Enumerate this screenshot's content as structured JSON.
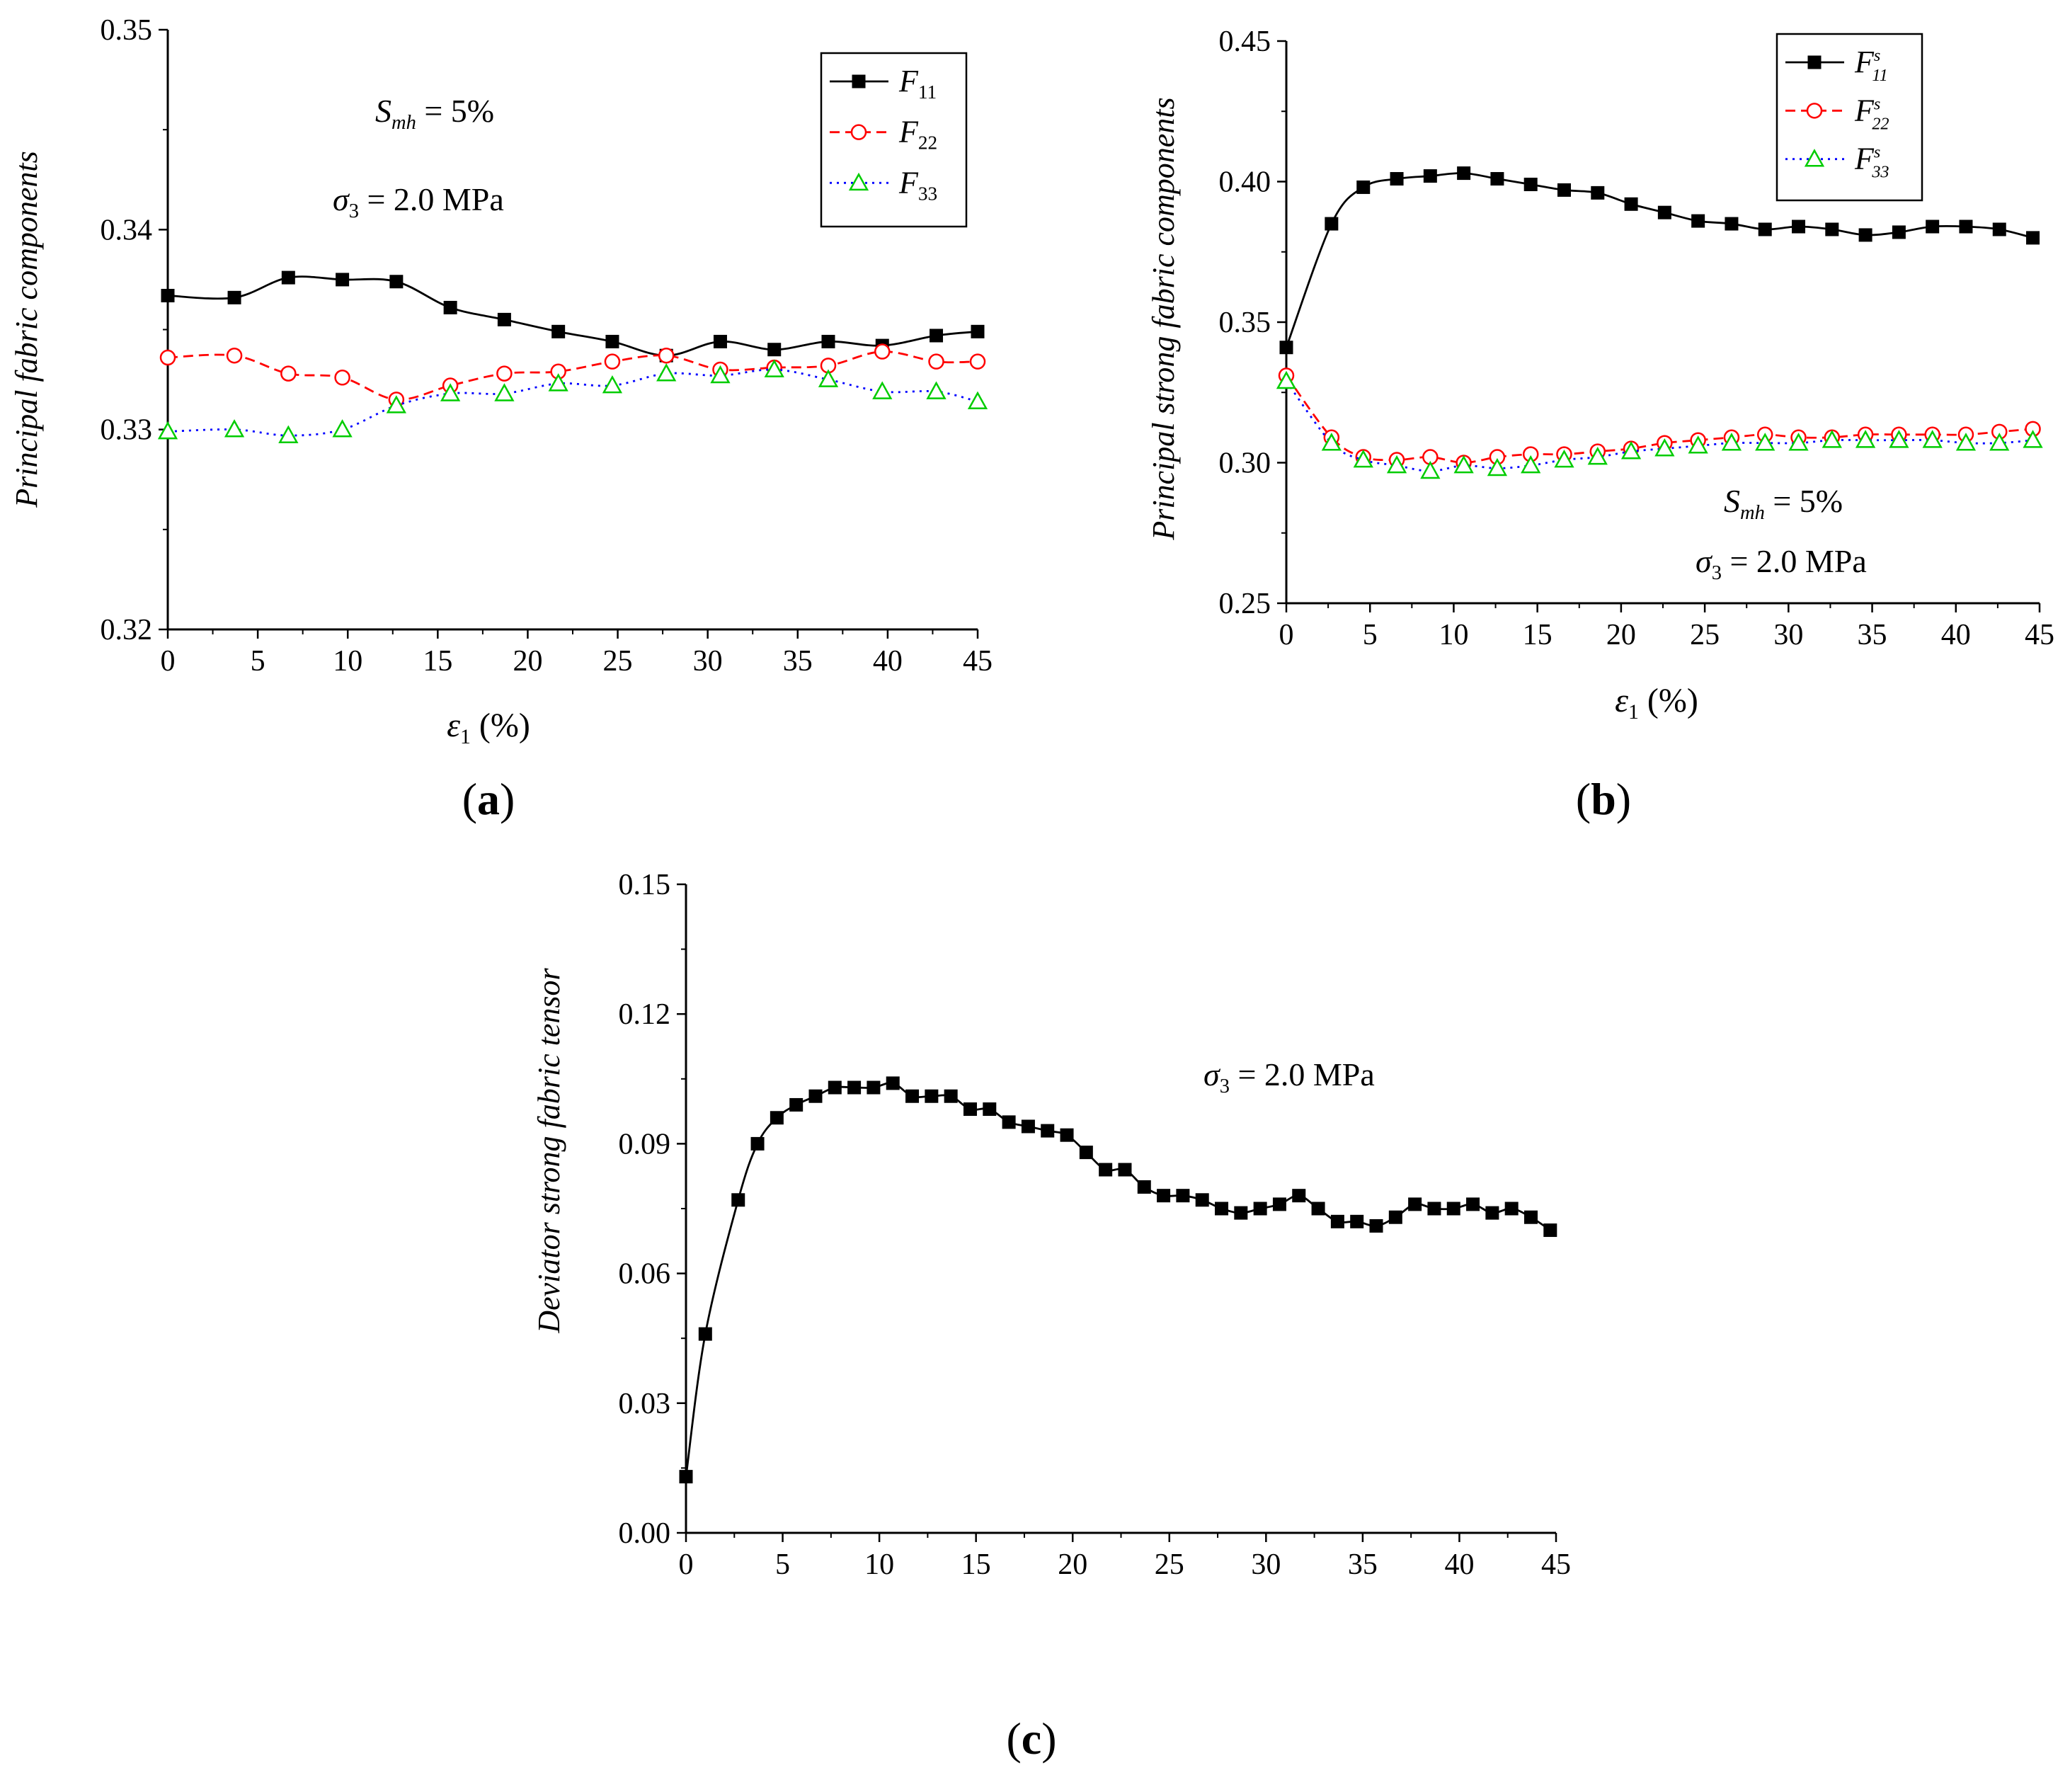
{
  "chart_data": [
    {
      "panel": "(a)",
      "type": "line",
      "x": [
        0,
        3.7,
        6.7,
        9.7,
        12.7,
        15.7,
        18.7,
        21.7,
        24.7,
        27.7,
        30.7,
        33.7,
        36.7,
        39.7,
        42.7,
        45
      ],
      "series": [
        {
          "name": "F11",
          "color": "#000000",
          "dash": "",
          "marker": "square-filled",
          "values": [
            0.3367,
            0.3366,
            0.3376,
            0.3375,
            0.3374,
            0.3361,
            0.3355,
            0.3349,
            0.3344,
            0.3337,
            0.3344,
            0.334,
            0.3344,
            0.3342,
            0.3347,
            0.3349
          ]
        },
        {
          "name": "F22",
          "color": "#ff0000",
          "dash": "14,8",
          "marker": "circle-open",
          "values": [
            0.3336,
            0.3337,
            0.3328,
            0.3326,
            0.3315,
            0.3322,
            0.3328,
            0.3329,
            0.3334,
            0.3337,
            0.333,
            0.3331,
            0.3332,
            0.3339,
            0.3334,
            0.3334
          ]
        },
        {
          "name": "F33",
          "color": "#0000ff",
          "dash": "3,7",
          "marker": "triangle-open-green",
          "values": [
            0.3299,
            0.33,
            0.3297,
            0.33,
            0.3312,
            0.3318,
            0.3318,
            0.3323,
            0.3322,
            0.3328,
            0.3327,
            0.333,
            0.3325,
            0.3319,
            0.3319,
            0.3314
          ]
        }
      ],
      "xlim": [
        0,
        45
      ],
      "ylim": [
        0.32,
        0.35
      ],
      "xticks": [
        "0",
        "5",
        "10",
        "15",
        "20",
        "25",
        "30",
        "35",
        "40",
        "45"
      ],
      "yticks": [
        "0.32",
        "0.33",
        "0.34",
        "0.35"
      ],
      "xlabel": "ε1 (%)",
      "xlabel_var": "ε",
      "xlabel_sub": "1",
      "xlabel_unit": "(%)",
      "ylabel": "Principal fabric components",
      "annotations": [
        {
          "var": "S",
          "sub": "mh",
          "rest": " = 5%"
        },
        {
          "var": "σ",
          "sub": "3",
          "rest": " = 2.0 MPa"
        }
      ],
      "legend_position": "top-right",
      "legend_items": [
        {
          "base": "F",
          "sub": "11"
        },
        {
          "base": "F",
          "sub": "22"
        },
        {
          "base": "F",
          "sub": "33"
        }
      ]
    },
    {
      "panel": "(b)",
      "type": "line",
      "x": [
        0,
        2.7,
        4.6,
        6.6,
        8.6,
        10.6,
        12.6,
        14.6,
        16.6,
        18.6,
        20.6,
        22.6,
        24.6,
        26.6,
        28.6,
        30.6,
        32.6,
        34.6,
        36.6,
        38.6,
        40.6,
        42.6,
        44.6
      ],
      "series": [
        {
          "name": "F^s_11",
          "color": "#000000",
          "dash": "",
          "marker": "square-filled",
          "values": [
            0.341,
            0.385,
            0.398,
            0.401,
            0.402,
            0.403,
            0.401,
            0.399,
            0.397,
            0.396,
            0.392,
            0.389,
            0.386,
            0.385,
            0.383,
            0.384,
            0.383,
            0.381,
            0.382,
            0.384,
            0.384,
            0.383,
            0.38
          ]
        },
        {
          "name": "F^s_22",
          "color": "#ff0000",
          "dash": "14,8",
          "marker": "circle-open",
          "values": [
            0.331,
            0.309,
            0.302,
            0.301,
            0.302,
            0.3,
            0.302,
            0.303,
            0.303,
            0.304,
            0.305,
            0.307,
            0.308,
            0.309,
            0.31,
            0.309,
            0.309,
            0.31,
            0.31,
            0.31,
            0.31,
            0.311,
            0.312
          ]
        },
        {
          "name": "F^s_33",
          "color": "#0000ff",
          "dash": "3,7",
          "marker": "triangle-open-green",
          "values": [
            0.329,
            0.307,
            0.301,
            0.299,
            0.297,
            0.299,
            0.298,
            0.299,
            0.301,
            0.302,
            0.304,
            0.305,
            0.306,
            0.307,
            0.307,
            0.307,
            0.308,
            0.308,
            0.308,
            0.308,
            0.307,
            0.307,
            0.308
          ]
        }
      ],
      "xlim": [
        0,
        45
      ],
      "ylim": [
        0.25,
        0.45
      ],
      "xticks": [
        "0",
        "5",
        "10",
        "15",
        "20",
        "25",
        "30",
        "35",
        "40",
        "45"
      ],
      "yticks": [
        "0.25",
        "0.30",
        "0.35",
        "0.40",
        "0.45"
      ],
      "xlabel": "ε1 (%)",
      "xlabel_var": "ε",
      "xlabel_sub": "1",
      "xlabel_unit": "(%)",
      "ylabel": "Principal strong fabric components",
      "annotations": [
        {
          "var": "S",
          "sub": "mh",
          "rest": " = 5%"
        },
        {
          "var": "σ",
          "sub": "3",
          "rest": " = 2.0 MPa"
        }
      ],
      "legend_position": "top-right",
      "legend_items": [
        {
          "base": "F",
          "sup": "s",
          "sub": "11"
        },
        {
          "base": "F",
          "sup": "s",
          "sub": "22"
        },
        {
          "base": "F",
          "sup": "s",
          "sub": "33"
        }
      ]
    },
    {
      "panel": "(c)",
      "type": "line",
      "x": [
        0,
        1,
        2.7,
        3.7,
        4.7,
        5.7,
        6.7,
        7.7,
        8.7,
        9.7,
        10.7,
        11.7,
        12.7,
        13.7,
        14.7,
        15.7,
        16.7,
        17.7,
        18.7,
        19.7,
        20.7,
        21.7,
        22.7,
        23.7,
        24.7,
        25.7,
        26.7,
        27.7,
        28.7,
        29.7,
        30.7,
        31.7,
        32.7,
        33.7,
        34.7,
        35.7,
        36.7,
        37.7,
        38.7,
        39.7,
        40.7,
        41.7,
        42.7,
        43.7,
        44.7
      ],
      "series": [
        {
          "name": "Deviator",
          "color": "#000000",
          "dash": "",
          "marker": "square-filled",
          "values": [
            0.013,
            0.046,
            0.077,
            0.09,
            0.096,
            0.099,
            0.101,
            0.103,
            0.103,
            0.103,
            0.104,
            0.101,
            0.101,
            0.101,
            0.098,
            0.098,
            0.095,
            0.094,
            0.093,
            0.092,
            0.088,
            0.084,
            0.084,
            0.08,
            0.078,
            0.078,
            0.077,
            0.075,
            0.074,
            0.075,
            0.076,
            0.078,
            0.075,
            0.072,
            0.072,
            0.071,
            0.073,
            0.076,
            0.075,
            0.075,
            0.076,
            0.074,
            0.075,
            0.073,
            0.07
          ]
        }
      ],
      "xlim": [
        0,
        45
      ],
      "ylim": [
        0,
        0.15
      ],
      "xticks": [
        "0",
        "5",
        "10",
        "15",
        "20",
        "25",
        "30",
        "35",
        "40",
        "45"
      ],
      "yticks": [
        "0.00",
        "0.03",
        "0.06",
        "0.09",
        "0.12",
        "0.15"
      ],
      "xlabel": "",
      "ylabel": "Deviator strong fabric tensor",
      "annotations": [
        {
          "var": "σ",
          "sub": "3",
          "rest": " = 2.0 MPa"
        }
      ]
    }
  ]
}
